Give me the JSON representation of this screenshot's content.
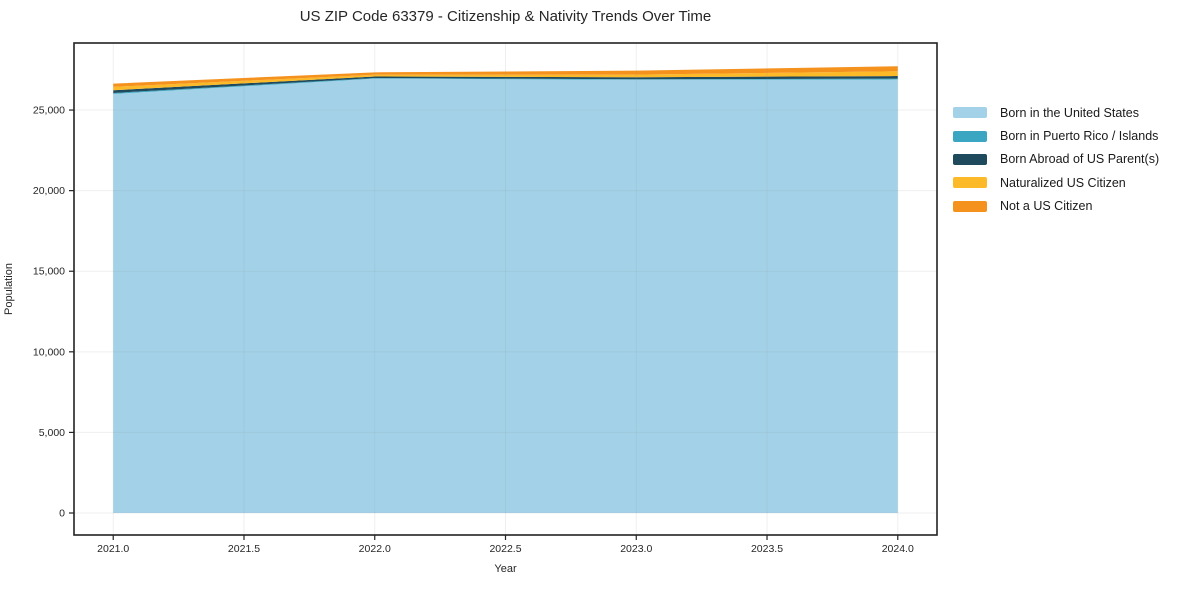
{
  "chart_data": {
    "type": "area",
    "stacked": true,
    "title": "US ZIP Code 63379 - Citizenship & Nativity Trends Over Time",
    "xlabel": "Year",
    "ylabel": "Population",
    "x": [
      2021,
      2022,
      2023,
      2024
    ],
    "series": [
      {
        "name": "Born in the United States",
        "color": "#A3D2E8",
        "values": [
          26000,
          26950,
          26880,
          26900
        ]
      },
      {
        "name": "Born in Puerto Rico / Islands",
        "color": "#3BA6C2",
        "values": [
          60,
          40,
          30,
          50
        ]
      },
      {
        "name": "Born Abroad of US Parent(s)",
        "color": "#1F495C",
        "values": [
          170,
          90,
          125,
          160
        ]
      },
      {
        "name": "Naturalized US Citizen",
        "color": "#FCB928",
        "values": [
          210,
          110,
          160,
          300
        ]
      },
      {
        "name": "Not a US Citizen",
        "color": "#F5921E",
        "values": [
          200,
          150,
          250,
          310
        ]
      }
    ],
    "x_ticks": [
      2021.0,
      2021.5,
      2022.0,
      2022.5,
      2023.0,
      2023.5,
      2024.0
    ],
    "x_tick_labels": [
      "2021.0",
      "2021.5",
      "2022.0",
      "2022.5",
      "2023.0",
      "2023.5",
      "2024.0"
    ],
    "y_ticks": [
      0,
      5000,
      10000,
      15000,
      20000,
      25000
    ],
    "y_tick_labels": [
      "0",
      "5,000",
      "10,000",
      "15,000",
      "20,000",
      "25,000"
    ],
    "xlim": [
      2020.85,
      2024.15
    ],
    "ylim": [
      -1365,
      29160
    ],
    "grid": true,
    "legend_position": "center right"
  },
  "colors": {
    "background": "#ffffff",
    "grid_under": "#e6e6e6",
    "grid_over": "rgba(150,150,150,0.15)",
    "spine": "#222222",
    "tick": "#222222",
    "text": "#262626"
  }
}
